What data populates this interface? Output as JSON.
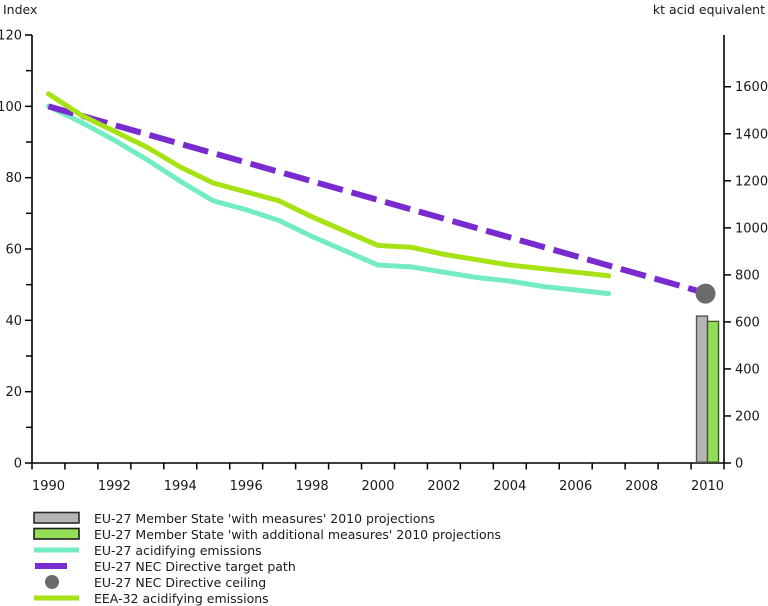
{
  "page": {
    "left_axis_title": "Index",
    "right_axis_title": "kt acid equivalent"
  },
  "chart_data": {
    "type": "line",
    "title": "",
    "x_axis": {
      "start_year": 1990,
      "end_year": 2010,
      "tick_between_categories": true,
      "labels": [
        "1990",
        "1992",
        "1994",
        "1996",
        "1998",
        "2000",
        "2002",
        "2004",
        "2006",
        "2008",
        "2010"
      ]
    },
    "left_axis": {
      "title": "Index",
      "min": 0,
      "max": 120,
      "major_tick_step": 20,
      "minor_tick_step": 10,
      "tick_labels": [
        "0",
        "20",
        "40",
        "60",
        "80",
        "100",
        "120"
      ]
    },
    "right_axis": {
      "title": "kt acid equivalent",
      "min": 0,
      "tick_step": 200,
      "tick_labels": [
        "0",
        "200",
        "400",
        "600",
        "800",
        "1000",
        "1200",
        "1400",
        "1600"
      ],
      "scale_max": 1820
    },
    "series": [
      {
        "name": "EU-27 acidifying emissions",
        "type": "line",
        "color": "#73ECC1",
        "width": 5,
        "years": [
          1990,
          1991,
          1992,
          1993,
          1994,
          1995,
          1996,
          1997,
          1998,
          1999,
          2000,
          2001,
          2002,
          2003,
          2004,
          2005,
          2006,
          2007
        ],
        "values": [
          100,
          95.5,
          90.5,
          85,
          79,
          73.5,
          71,
          68,
          63.5,
          59.5,
          55.5,
          55,
          53.5,
          52,
          51,
          49.5,
          48.5,
          47.5
        ]
      },
      {
        "name": "EU-27 NEC Directive target path",
        "type": "dashed-line",
        "color": "#7A2BD0",
        "width": 6,
        "years": [
          1990,
          2010
        ],
        "values": [
          100,
          47.5
        ]
      },
      {
        "name": "EEA-32 acidifying emissions",
        "type": "line",
        "color": "#A6E214",
        "width": 5,
        "years": [
          1990,
          1991,
          1992,
          1993,
          1994,
          1995,
          1996,
          1997,
          1998,
          1999,
          2000,
          2001,
          2002,
          2003,
          2004,
          2005,
          2006,
          2007
        ],
        "values": [
          103.5,
          97.5,
          93,
          88.5,
          83,
          78.5,
          76,
          73.5,
          69,
          65,
          61,
          60.5,
          58.5,
          57,
          55.5,
          54.5,
          53.5,
          52.5
        ]
      }
    ],
    "point_marker": {
      "name": "EU-27 NEC Directive ceiling",
      "year": 2010,
      "index_value": 47.5,
      "kt_value": 715,
      "color": "#6B6B6B",
      "radius": 10
    },
    "bars": [
      {
        "name": "EU-27 Member State 'with measures' 2010 projections",
        "year": 2010,
        "index_value": 41.2,
        "kt_value": 625,
        "fill": "#B5B5B5",
        "stroke": "#565656"
      },
      {
        "name": "EU-27 Member State 'with additional measures' 2010 projections",
        "year": 2010,
        "index_value": 39.7,
        "kt_value": 600,
        "fill": "#93DE56",
        "stroke": "#3E5A2A"
      }
    ],
    "legend": [
      {
        "swatch": "bar",
        "fill": "#B5B5B5",
        "stroke": "#2B2B2B",
        "label": "EU-27 Member State 'with measures' 2010 projections"
      },
      {
        "swatch": "bar",
        "fill": "#93DE56",
        "stroke": "#1F1F1F",
        "label": "EU-27 Member State 'with additional measures' 2010 projections"
      },
      {
        "swatch": "line",
        "color": "#73ECC1",
        "label": "EU-27 acidifying emissions"
      },
      {
        "swatch": "dash",
        "color": "#7A2BD0",
        "label": "EU-27 NEC Directive target path"
      },
      {
        "swatch": "dot",
        "color": "#6B6B6B",
        "label": "EU-27 NEC Directive ceiling"
      },
      {
        "swatch": "line",
        "color": "#A6E214",
        "label": "EEA-32 acidifying emissions"
      }
    ]
  }
}
